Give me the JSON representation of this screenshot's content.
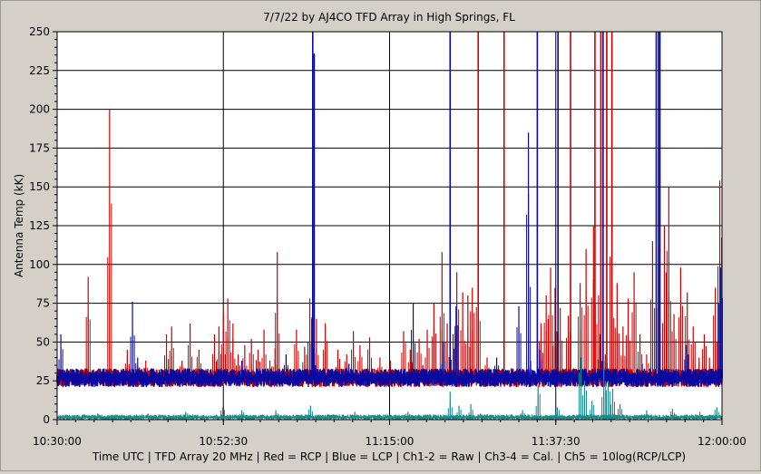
{
  "chart_data": {
    "type": "line",
    "title": "7/7/22  by  AJ4CO TFD Array  in  High Springs, FL",
    "xlabel": "Time UTC | TFD Array 20 MHz | Red = RCP | Blue = LCP | Ch1-2 = Raw | Ch3-4 = Cal. | Ch5 = 10log(RCP/LCP)",
    "ylabel": "Antenna Temp (kK)",
    "x_range_minutes": [
      0,
      90
    ],
    "ylim": [
      0,
      250
    ],
    "x_ticks": [
      "10:30:00",
      "10:52:30",
      "11:15:00",
      "11:37:30",
      "12:00:00"
    ],
    "x_tick_minutes": [
      0,
      22.5,
      45,
      67.5,
      90
    ],
    "y_ticks": [
      0,
      25,
      50,
      75,
      100,
      125,
      150,
      175,
      200,
      225,
      250
    ],
    "grid": true,
    "colors": {
      "background": "#ffffff",
      "grid": "#000000",
      "rcp": "#cc0000",
      "lcp": "#0a0aa0",
      "ratio": "#1a8a8a"
    },
    "series": [
      {
        "name": "RCP",
        "color": "#cc0000",
        "baseline": 27,
        "spikes": [
          [
            4.2,
            92
          ],
          [
            7.1,
            200
          ],
          [
            9.5,
            45
          ],
          [
            12.0,
            38
          ],
          [
            14.8,
            55
          ],
          [
            15.5,
            60
          ],
          [
            16.9,
            38
          ],
          [
            18.0,
            62
          ],
          [
            19.2,
            45
          ],
          [
            21.3,
            55
          ],
          [
            21.9,
            60
          ],
          [
            22.5,
            70
          ],
          [
            23.1,
            78
          ],
          [
            23.8,
            62
          ],
          [
            24.5,
            42
          ],
          [
            25.4,
            48
          ],
          [
            26.3,
            52
          ],
          [
            27.2,
            45
          ],
          [
            28.0,
            58
          ],
          [
            28.8,
            38
          ],
          [
            29.5,
            46
          ],
          [
            29.8,
            108
          ],
          [
            31.0,
            42
          ],
          [
            32.4,
            58
          ],
          [
            33.5,
            47
          ],
          [
            34.2,
            78
          ],
          [
            35.1,
            65
          ],
          [
            36.3,
            62
          ],
          [
            38.0,
            45
          ],
          [
            39.2,
            42
          ],
          [
            40.1,
            57
          ],
          [
            41.0,
            48
          ],
          [
            42.3,
            53
          ],
          [
            43.7,
            40
          ],
          [
            45.1,
            38
          ],
          [
            46.9,
            57
          ],
          [
            47.8,
            45
          ],
          [
            49.0,
            52
          ],
          [
            50.1,
            58
          ],
          [
            51.0,
            75
          ],
          [
            52.1,
            108
          ],
          [
            52.8,
            62
          ],
          [
            53.6,
            55
          ],
          [
            54.1,
            95
          ],
          [
            54.9,
            82
          ],
          [
            55.6,
            80
          ],
          [
            56.2,
            85
          ],
          [
            57.0,
            118
          ],
          [
            58.2,
            40
          ],
          [
            60.5,
            35
          ],
          [
            62.3,
            33
          ],
          [
            64.1,
            38
          ],
          [
            65.5,
            62
          ],
          [
            66.2,
            80
          ],
          [
            66.8,
            98
          ],
          [
            67.4,
            85
          ],
          [
            68.1,
            72
          ],
          [
            69.2,
            67
          ],
          [
            70.8,
            88
          ],
          [
            71.6,
            110
          ],
          [
            72.6,
            125
          ],
          [
            73.3,
            80
          ],
          [
            74.2,
            42
          ],
          [
            75.1,
            135
          ],
          [
            75.8,
            88
          ],
          [
            76.6,
            60
          ],
          [
            77.3,
            78
          ],
          [
            78.1,
            95
          ],
          [
            78.9,
            55
          ],
          [
            79.8,
            42
          ],
          [
            80.6,
            115
          ],
          [
            81.4,
            100
          ],
          [
            82.2,
            125
          ],
          [
            82.8,
            150
          ],
          [
            83.5,
            68
          ],
          [
            84.4,
            98
          ],
          [
            85.3,
            82
          ],
          [
            86.1,
            60
          ],
          [
            86.9,
            40
          ],
          [
            87.6,
            55
          ],
          [
            88.3,
            40
          ],
          [
            89.1,
            85
          ],
          [
            89.7,
            154
          ]
        ],
        "tall_spikes": [
          [
            57.0,
            250
          ],
          [
            60.5,
            250
          ],
          [
            69.5,
            250
          ],
          [
            72.8,
            250
          ],
          [
            73.6,
            250
          ],
          [
            74.4,
            250
          ],
          [
            75.1,
            250
          ]
        ]
      },
      {
        "name": "LCP",
        "color": "#0a0aa0",
        "baseline": 27,
        "spikes": [
          [
            0.5,
            55
          ],
          [
            10.2,
            76
          ],
          [
            10.9,
            40
          ],
          [
            25.0,
            38
          ],
          [
            31.0,
            42
          ],
          [
            34.5,
            66
          ],
          [
            35.0,
            35
          ],
          [
            39.5,
            36
          ],
          [
            48.2,
            75
          ],
          [
            49.5,
            35
          ],
          [
            52.3,
            50
          ],
          [
            54.0,
            73
          ],
          [
            59.5,
            40
          ],
          [
            62.5,
            73
          ],
          [
            63.8,
            185
          ],
          [
            65.3,
            45
          ],
          [
            73.5,
            55
          ],
          [
            79.2,
            36
          ],
          [
            85.2,
            48
          ],
          [
            89.8,
            98
          ]
        ],
        "tall_spikes": [
          [
            34.6,
            250
          ],
          [
            34.8,
            236
          ],
          [
            53.2,
            250
          ],
          [
            65.0,
            250
          ],
          [
            67.8,
            250
          ],
          [
            73.9,
            250
          ],
          [
            81.1,
            250
          ],
          [
            81.4,
            250
          ],
          [
            81.6,
            250
          ]
        ]
      },
      {
        "name": "10log(RCP/LCP)",
        "color": "#1a8a8a",
        "baseline": 1.5,
        "spikes": [
          [
            5.5,
            4
          ],
          [
            12.3,
            4
          ],
          [
            17.4,
            5
          ],
          [
            22.4,
            8
          ],
          [
            25.0,
            6
          ],
          [
            29.6,
            6
          ],
          [
            34.3,
            9
          ],
          [
            40.3,
            5
          ],
          [
            47.5,
            5
          ],
          [
            53.2,
            18
          ],
          [
            54.4,
            9
          ],
          [
            56.0,
            10
          ],
          [
            57.3,
            4
          ],
          [
            63.0,
            6
          ],
          [
            65.1,
            22
          ],
          [
            67.7,
            8
          ],
          [
            70.9,
            40
          ],
          [
            71.4,
            25
          ],
          [
            72.4,
            12
          ],
          [
            74.0,
            38
          ],
          [
            74.6,
            25
          ],
          [
            75.2,
            20
          ],
          [
            76.2,
            10
          ],
          [
            79.8,
            6
          ],
          [
            83.3,
            7
          ],
          [
            87.0,
            5
          ],
          [
            89.3,
            8
          ]
        ],
        "tall_spikes": []
      }
    ]
  }
}
